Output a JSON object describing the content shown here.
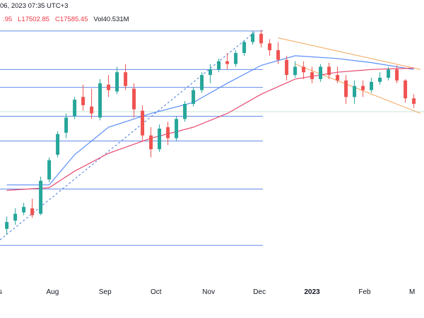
{
  "header": {
    "datetime_fragment": "06, 2023 07:35 UTC+3",
    "ohlc_fragment_1": ".95",
    "low": "L17502.85",
    "close": "C17585.45",
    "volume": "Vol40.531M"
  },
  "chart_data": {
    "type": "candlestick",
    "title": "",
    "xlabel": "",
    "ylabel": "",
    "x_ticks": [
      "Aug",
      "Sep",
      "Oct",
      "Nov",
      "Dec",
      "2023",
      "Feb",
      "M"
    ],
    "ylim": [
      15900,
      17700
    ],
    "fibonacci_levels": [
      17680,
      17400,
      17270,
      17060,
      16880,
      16530,
      16120
    ],
    "series": [
      {
        "values": [
          {
            "x": "Jul 05",
            "o": 16240,
            "h": 16330,
            "l": 16200,
            "c": 16290
          },
          {
            "x": "Jul 10",
            "o": 16300,
            "h": 16390,
            "l": 16270,
            "c": 16350
          },
          {
            "x": "Jul 15",
            "o": 16360,
            "h": 16430,
            "l": 16340,
            "c": 16400
          },
          {
            "x": "Jul 20",
            "o": 16390,
            "h": 16460,
            "l": 16320,
            "c": 16340
          },
          {
            "x": "Jul 25",
            "o": 16350,
            "h": 16620,
            "l": 16340,
            "c": 16590
          },
          {
            "x": "Jul 30",
            "o": 16600,
            "h": 16760,
            "l": 16580,
            "c": 16740
          },
          {
            "x": "Aug 04",
            "o": 16780,
            "h": 16950,
            "l": 16760,
            "c": 16930
          },
          {
            "x": "Aug 09",
            "o": 16940,
            "h": 17080,
            "l": 16900,
            "c": 17050
          },
          {
            "x": "Aug 14",
            "o": 17060,
            "h": 17200,
            "l": 17040,
            "c": 17180
          },
          {
            "x": "Aug 19",
            "o": 17200,
            "h": 17290,
            "l": 17100,
            "c": 17140
          },
          {
            "x": "Aug 24",
            "o": 17130,
            "h": 17260,
            "l": 17040,
            "c": 17080
          },
          {
            "x": "Aug 29",
            "o": 17050,
            "h": 17330,
            "l": 17030,
            "c": 17300
          },
          {
            "x": "Sep 03",
            "o": 17290,
            "h": 17360,
            "l": 17200,
            "c": 17250
          },
          {
            "x": "Sep 08",
            "o": 17240,
            "h": 17420,
            "l": 17220,
            "c": 17380
          },
          {
            "x": "Sep 13",
            "o": 17380,
            "h": 17440,
            "l": 17250,
            "c": 17280
          },
          {
            "x": "Sep 18",
            "o": 17260,
            "h": 17300,
            "l": 17050,
            "c": 17110
          },
          {
            "x": "Sep 23",
            "o": 17100,
            "h": 17140,
            "l": 16880,
            "c": 16920
          },
          {
            "x": "Sep 28",
            "o": 16920,
            "h": 16980,
            "l": 16760,
            "c": 16820
          },
          {
            "x": "Oct 03",
            "o": 16820,
            "h": 17000,
            "l": 16800,
            "c": 16970
          },
          {
            "x": "Oct 08",
            "o": 16980,
            "h": 17020,
            "l": 16850,
            "c": 16900
          },
          {
            "x": "Oct 13",
            "o": 16900,
            "h": 17060,
            "l": 16880,
            "c": 17040
          },
          {
            "x": "Oct 18",
            "o": 17040,
            "h": 17170,
            "l": 17020,
            "c": 17150
          },
          {
            "x": "Oct 23",
            "o": 17150,
            "h": 17270,
            "l": 17130,
            "c": 17250
          },
          {
            "x": "Oct 28",
            "o": 17250,
            "h": 17380,
            "l": 17230,
            "c": 17360
          },
          {
            "x": "Nov 02",
            "o": 17360,
            "h": 17440,
            "l": 17300,
            "c": 17400
          },
          {
            "x": "Nov 07",
            "o": 17400,
            "h": 17480,
            "l": 17380,
            "c": 17460
          },
          {
            "x": "Nov 12",
            "o": 17460,
            "h": 17520,
            "l": 17400,
            "c": 17440
          },
          {
            "x": "Nov 17",
            "o": 17440,
            "h": 17540,
            "l": 17420,
            "c": 17520
          },
          {
            "x": "Nov 22",
            "o": 17520,
            "h": 17610,
            "l": 17500,
            "c": 17600
          },
          {
            "x": "Nov 27",
            "o": 17600,
            "h": 17680,
            "l": 17580,
            "c": 17660
          },
          {
            "x": "Dec 02",
            "o": 17660,
            "h": 17690,
            "l": 17560,
            "c": 17590
          },
          {
            "x": "Dec 07",
            "o": 17590,
            "h": 17620,
            "l": 17500,
            "c": 17540
          },
          {
            "x": "Dec 12",
            "o": 17540,
            "h": 17600,
            "l": 17440,
            "c": 17470
          },
          {
            "x": "Dec 17",
            "o": 17470,
            "h": 17500,
            "l": 17320,
            "c": 17360
          },
          {
            "x": "Dec 22",
            "o": 17360,
            "h": 17460,
            "l": 17340,
            "c": 17420
          },
          {
            "x": "Dec 27",
            "o": 17420,
            "h": 17460,
            "l": 17330,
            "c": 17380
          },
          {
            "x": "Jan 01",
            "o": 17380,
            "h": 17420,
            "l": 17300,
            "c": 17330
          },
          {
            "x": "Jan 06",
            "o": 17330,
            "h": 17440,
            "l": 17310,
            "c": 17420
          },
          {
            "x": "Jan 11",
            "o": 17420,
            "h": 17450,
            "l": 17330,
            "c": 17360
          },
          {
            "x": "Jan 16",
            "o": 17360,
            "h": 17420,
            "l": 17300,
            "c": 17320
          },
          {
            "x": "Jan 21",
            "o": 17320,
            "h": 17360,
            "l": 17150,
            "c": 17200
          },
          {
            "x": "Jan 26",
            "o": 17200,
            "h": 17320,
            "l": 17150,
            "c": 17280
          },
          {
            "x": "Jan 31",
            "o": 17280,
            "h": 17320,
            "l": 17200,
            "c": 17250
          },
          {
            "x": "Feb 05",
            "o": 17250,
            "h": 17340,
            "l": 17230,
            "c": 17310
          },
          {
            "x": "Feb 10",
            "o": 17310,
            "h": 17380,
            "l": 17290,
            "c": 17340
          },
          {
            "x": "Feb 15",
            "o": 17340,
            "h": 17420,
            "l": 17320,
            "c": 17400
          },
          {
            "x": "Feb 20",
            "o": 17400,
            "h": 17430,
            "l": 17300,
            "c": 17320
          },
          {
            "x": "Feb 25",
            "o": 17320,
            "h": 17330,
            "l": 17160,
            "c": 17190
          },
          {
            "x": "Mar 02",
            "o": 17190,
            "h": 17220,
            "l": 17120,
            "c": 17150
          }
        ]
      },
      {
        "values": [
          {
            "x": "Jul 05",
            "y": 16560
          },
          {
            "x": "Jul 30",
            "y": 16560
          },
          {
            "x": "Aug 14",
            "y": 16780
          },
          {
            "x": "Sep 03",
            "y": 16980
          },
          {
            "x": "Sep 28",
            "y": 17080
          },
          {
            "x": "Oct 23",
            "y": 17160
          },
          {
            "x": "Nov 12",
            "y": 17300
          },
          {
            "x": "Dec 02",
            "y": 17430
          },
          {
            "x": "Dec 22",
            "y": 17500
          },
          {
            "x": "Jan 16",
            "y": 17480
          },
          {
            "x": "Feb 05",
            "y": 17450
          },
          {
            "x": "Mar 02",
            "y": 17400
          }
        ]
      },
      {
        "values": [
          {
            "x": "Jul 05",
            "y": 16520
          },
          {
            "x": "Jul 30",
            "y": 16540
          },
          {
            "x": "Aug 14",
            "y": 16660
          },
          {
            "x": "Sep 03",
            "y": 16790
          },
          {
            "x": "Sep 28",
            "y": 16900
          },
          {
            "x": "Oct 23",
            "y": 16980
          },
          {
            "x": "Nov 12",
            "y": 17080
          },
          {
            "x": "Dec 02",
            "y": 17220
          },
          {
            "x": "Dec 22",
            "y": 17330
          },
          {
            "x": "Jan 16",
            "y": 17380
          },
          {
            "x": "Feb 05",
            "y": 17400
          },
          {
            "x": "Mar 02",
            "y": 17410
          }
        ]
      }
    ],
    "channel": {
      "upper": [
        {
          "x": "Dec 12",
          "y": 17630
        },
        {
          "x": "Mar 06",
          "y": 17400
        }
      ],
      "lower": [
        {
          "x": "Dec 22",
          "y": 17440
        },
        {
          "x": "Mar 06",
          "y": 17080
        }
      ]
    },
    "trendline": [
      {
        "x": "Jul 01",
        "y": 16160
      },
      {
        "x": "Nov 29",
        "y": 17680
      }
    ],
    "colors": {
      "up": "#26a69a",
      "down": "#ef5350",
      "ma_fast": "#5b8ff9",
      "ma_slow": "#e84a6f",
      "fib": "#4a78e0",
      "channel": "#f5a45b",
      "trend": "#4a78e0"
    }
  }
}
